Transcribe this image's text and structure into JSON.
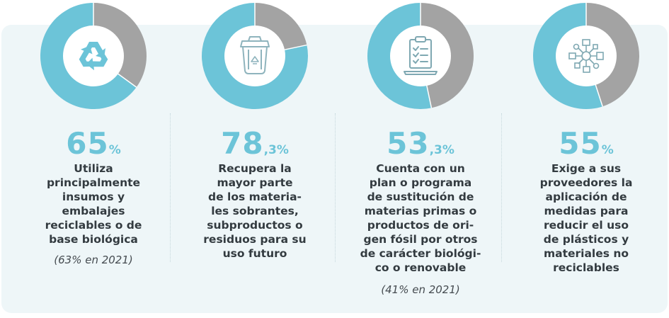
{
  "colors": {
    "accent": "#6cc4d8",
    "remainder": "#a3a3a3",
    "panel": "#eef6f8",
    "text": "#333b40"
  },
  "chart_data": [
    {
      "type": "pie",
      "style": "donut",
      "value": 65,
      "value_display": "65",
      "suffix": "%",
      "description_lines": [
        "Utiliza",
        "principalmente",
        "insumos y",
        "embalajes",
        "reciclables o de",
        "base biológica"
      ],
      "note": "(63% en 2021)",
      "icon": "recycle-icon"
    },
    {
      "type": "pie",
      "style": "donut",
      "value": 78.3,
      "value_display": "78",
      "suffix": ",3%",
      "description_lines": [
        "Recupera la",
        "mayor parte",
        "de los materia-",
        "les sobrantes,",
        "subproductos o",
        "residuos para su",
        "uso futuro"
      ],
      "note": "",
      "icon": "recycling-bin-icon"
    },
    {
      "type": "pie",
      "style": "donut",
      "value": 53.3,
      "value_display": "53",
      "suffix": ",3%",
      "description_lines": [
        "Cuenta con un",
        "plan o programa",
        "de sustitución de",
        "materias primas o",
        "productos de ori-",
        "gen fósil por otros",
        "de carácter biológi-",
        "co o renovable"
      ],
      "note": "(41% en 2021)",
      "icon": "clipboard-checklist-icon"
    },
    {
      "type": "pie",
      "style": "donut",
      "value": 55,
      "value_display": "55",
      "suffix": "%",
      "description_lines": [
        "Exige a sus",
        "proveedores la",
        "aplicación de",
        "medidas para",
        "reducir el uso",
        "de plásticos y",
        "materiales no",
        "reciclables"
      ],
      "note": "",
      "icon": "supply-network-icon"
    }
  ]
}
